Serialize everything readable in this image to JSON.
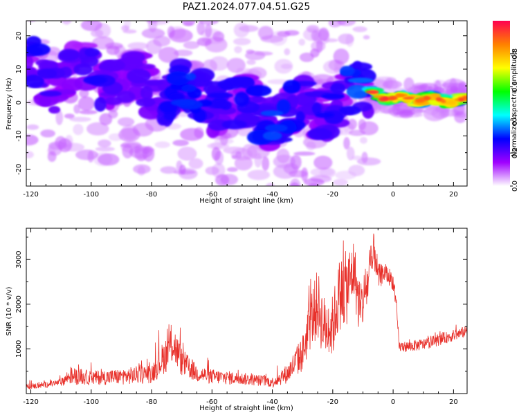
{
  "title": "PAZ1.2024.077.04.51.G25",
  "chart_data": [
    {
      "type": "heatmap",
      "xlabel": "Height of straight line (km)",
      "ylabel": "Frequency (Hz)",
      "xlim": [
        -121.5,
        24.5
      ],
      "ylim": [
        -25,
        24.5
      ],
      "xticks": [
        -120,
        -100,
        -80,
        -60,
        -40,
        -20,
        0,
        20
      ],
      "yticks": [
        -20,
        -10,
        0,
        10,
        20
      ],
      "colorbar": {
        "label": "Normalized spectral amplitude",
        "range": [
          0,
          1
        ],
        "ticks": [
          0.0,
          0.2,
          0.4,
          0.6,
          0.8
        ],
        "colors": [
          "#ffffff",
          "#a000ff",
          "#0000ff",
          "#00ffff",
          "#00ff00",
          "#ffff00",
          "#ff8000",
          "#ff0050"
        ]
      },
      "ridge": {
        "x": [
          -118,
          -110,
          -100,
          -90,
          -80,
          -70,
          -60,
          -50,
          -40,
          -30,
          -20,
          -10,
          0,
          10,
          24
        ],
        "frequency": [
          9.5,
          7,
          9,
          6,
          4,
          3,
          1,
          -2,
          -4,
          -3,
          0,
          3,
          1.5,
          1,
          0.5
        ],
        "amplitude": [
          0.25,
          0.2,
          0.25,
          0.2,
          0.2,
          0.3,
          0.25,
          0.25,
          0.3,
          0.25,
          0.25,
          0.35,
          0.7,
          0.75,
          0.7
        ]
      }
    },
    {
      "type": "line",
      "xlabel": "Height of straight line (km)",
      "ylabel": "SNR (10 * v/v)",
      "xlim": [
        -121.5,
        24.5
      ],
      "ylim": [
        0,
        3700
      ],
      "xticks": [
        -120,
        -100,
        -80,
        -60,
        -40,
        -20,
        0,
        20
      ],
      "yticks": [
        1000,
        2000,
        3000
      ],
      "series": [
        {
          "color": "#e8302a",
          "x": [
            -121.5,
            -115,
            -110,
            -107,
            -100,
            -90,
            -80,
            -75,
            -73,
            -70,
            -65,
            -60,
            -50,
            -42,
            -40,
            -35,
            -30,
            -27,
            -25,
            -23,
            -20,
            -18,
            -15,
            -13,
            -11,
            -8,
            -6,
            -5,
            -3,
            -1,
            0,
            1,
            2,
            5,
            10,
            15,
            20,
            24.5
          ],
          "y": [
            150,
            200,
            250,
            400,
            350,
            380,
            450,
            900,
            1150,
            700,
            450,
            380,
            330,
            280,
            250,
            450,
            900,
            1700,
            2000,
            1500,
            1500,
            2200,
            2400,
            2800,
            1800,
            2600,
            3200,
            2600,
            2700,
            2600,
            2500,
            2000,
            1050,
            1050,
            1100,
            1200,
            1300,
            1400
          ],
          "noise": [
            60,
            70,
            80,
            200,
            160,
            180,
            220,
            420,
            480,
            320,
            200,
            170,
            140,
            120,
            120,
            220,
            420,
            650,
            800,
            700,
            700,
            800,
            850,
            700,
            600,
            600,
            500,
            300,
            220,
            200,
            200,
            150,
            120,
            120,
            130,
            130,
            130,
            120
          ]
        }
      ]
    }
  ]
}
